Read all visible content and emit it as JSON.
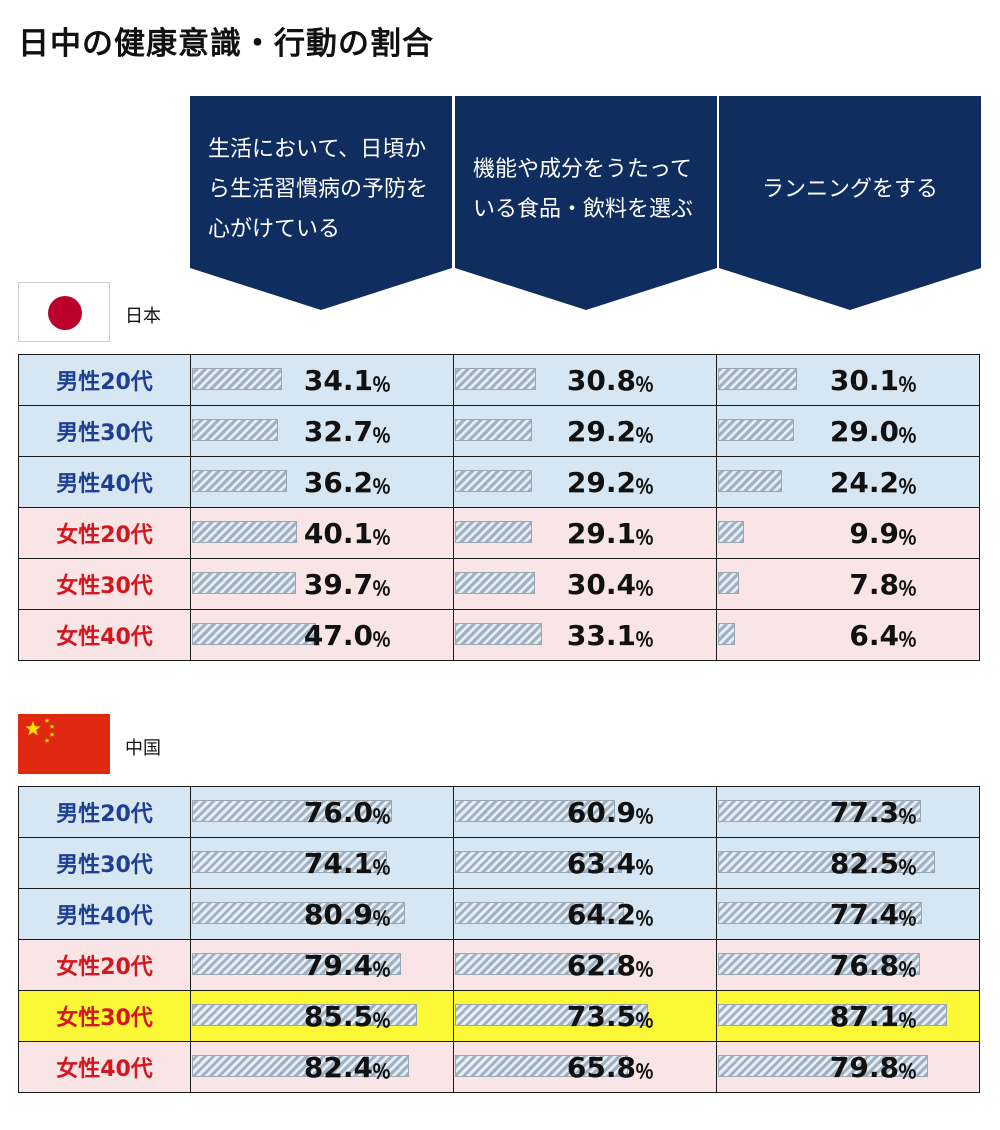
{
  "title": "日中の健康意識・行動の割合",
  "headers": [
    "生活において、日頃から生活習慣病の予防を心がけている",
    "機能や成分をうたっている食品・飲料を選ぶ",
    "ランニングをする"
  ],
  "colors": {
    "header": "#102d5f",
    "male_text": "#1f3f93",
    "female_text": "#d4161e",
    "male_bg": "#d6e6f3",
    "female_bg": "#f9e4e6",
    "highlight_bg": "#fbf835"
  },
  "chart_data": {
    "type": "table",
    "columns": [
      "生活において、日頃から生活習慣病の予防を心がけている",
      "機能や成分をうたっている食品・飲料を選ぶ",
      "ランニングをする"
    ],
    "unit": "％",
    "sections": [
      {
        "country": "日本",
        "flag": "japan-flag",
        "rows": [
          {
            "label": "男性20代",
            "gender": "male",
            "values": [
              "34.1",
              "30.8",
              "30.1"
            ]
          },
          {
            "label": "男性30代",
            "gender": "male",
            "values": [
              "32.7",
              "29.2",
              "29.0"
            ]
          },
          {
            "label": "男性40代",
            "gender": "male",
            "values": [
              "36.2",
              "29.2",
              "24.2"
            ]
          },
          {
            "label": "女性20代",
            "gender": "female",
            "values": [
              "40.1",
              "29.1",
              "9.9"
            ]
          },
          {
            "label": "女性30代",
            "gender": "female",
            "values": [
              "39.7",
              "30.4",
              "7.8"
            ]
          },
          {
            "label": "女性40代",
            "gender": "female",
            "values": [
              "47.0",
              "33.1",
              "6.4"
            ]
          }
        ]
      },
      {
        "country": "中国",
        "flag": "china-flag",
        "rows": [
          {
            "label": "男性20代",
            "gender": "male",
            "values": [
              "76.0",
              "60.9",
              "77.3"
            ]
          },
          {
            "label": "男性30代",
            "gender": "male",
            "values": [
              "74.1",
              "63.4",
              "82.5"
            ]
          },
          {
            "label": "男性40代",
            "gender": "male",
            "values": [
              "80.9",
              "64.2",
              "77.4"
            ]
          },
          {
            "label": "女性20代",
            "gender": "female",
            "values": [
              "79.4",
              "62.8",
              "76.8"
            ]
          },
          {
            "label": "女性30代",
            "gender": "female",
            "highlight": true,
            "values": [
              "85.5",
              "73.5",
              "87.1"
            ]
          },
          {
            "label": "女性40代",
            "gender": "female",
            "values": [
              "82.4",
              "65.8",
              "79.8"
            ]
          }
        ]
      }
    ]
  }
}
